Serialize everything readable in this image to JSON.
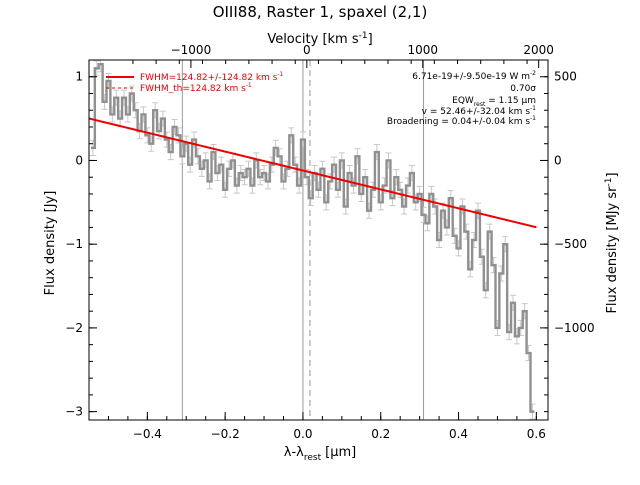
{
  "chart_data": {
    "type": "line",
    "title": "OIII88, Raster 1, spaxel (2,1)",
    "xlabel": "λ-λ",
    "xlabel_sub": "rest",
    "xlabel_unit": "[μm]",
    "top_xlabel": "Velocity [km s",
    "top_xlabel_sup": "-1",
    "top_xlabel_end": "]",
    "ylabel": "Flux density [Jy]",
    "right_ylabel": "Flux density [MJy sr",
    "right_ylabel_sup": "-1",
    "right_ylabel_end": "]",
    "xlim": [
      -0.55,
      0.63
    ],
    "ylim": [
      -3.1,
      1.2
    ],
    "x_ticks": [
      -0.4,
      -0.2,
      0.0,
      0.2,
      0.4,
      0.6
    ],
    "x_tick_labels": [
      "−0.4",
      "−0.2",
      "0.0",
      "0.2",
      "0.4",
      "0.6"
    ],
    "y_ticks": [
      -3,
      -2,
      -1,
      0,
      1
    ],
    "y_tick_labels": [
      "−3",
      "−2",
      "−1",
      "0",
      "1"
    ],
    "top_ticks": [
      -1000,
      0,
      1000,
      2000
    ],
    "top_tick_labels": [
      "−1000",
      "0",
      "1000",
      "2000"
    ],
    "right_ticks": [
      500,
      0,
      -500,
      -1000
    ],
    "right_tick_labels": [
      "500",
      "0",
      "−500",
      "−1000"
    ],
    "vlines": [
      -0.31,
      0.0,
      0.31
    ],
    "dashed_vline": 0.018,
    "legend": {
      "line1": "FWHM=124.82+/-124.82 km s",
      "line1_sup": "-1",
      "line2": "FWHM_th=124.82 km s",
      "line2_sup": "-1"
    },
    "annotations": {
      "flux": "6.71e-19+/-9.50e-19 W m",
      "flux_sup": "-2",
      "sigma": "0.70σ",
      "eqw_pre": "EQW",
      "eqw_sub": "rest",
      "eqw_val": " = 1.15 μm",
      "v": "v = 52.46+/-32.04 km s",
      "v_sup": "-1",
      "broadening": "Broadening = 0.04+/-0.04 km s",
      "broadening_sup": "-1"
    },
    "series": [
      {
        "kind": "spectrum",
        "color": "#909090",
        "x": [
          -0.54,
          -0.53,
          -0.52,
          -0.51,
          -0.5,
          -0.49,
          -0.48,
          -0.47,
          -0.46,
          -0.45,
          -0.44,
          -0.43,
          -0.42,
          -0.41,
          -0.4,
          -0.39,
          -0.38,
          -0.37,
          -0.36,
          -0.35,
          -0.34,
          -0.33,
          -0.32,
          -0.31,
          -0.3,
          -0.29,
          -0.28,
          -0.27,
          -0.26,
          -0.25,
          -0.24,
          -0.23,
          -0.22,
          -0.21,
          -0.2,
          -0.19,
          -0.18,
          -0.17,
          -0.16,
          -0.15,
          -0.14,
          -0.13,
          -0.12,
          -0.11,
          -0.1,
          -0.09,
          -0.08,
          -0.07,
          -0.06,
          -0.05,
          -0.04,
          -0.03,
          -0.02,
          -0.01,
          0.0,
          0.01,
          0.02,
          0.03,
          0.04,
          0.05,
          0.06,
          0.07,
          0.08,
          0.09,
          0.1,
          0.11,
          0.12,
          0.13,
          0.14,
          0.15,
          0.16,
          0.17,
          0.18,
          0.19,
          0.2,
          0.21,
          0.22,
          0.23,
          0.24,
          0.25,
          0.26,
          0.27,
          0.28,
          0.29,
          0.3,
          0.31,
          0.32,
          0.33,
          0.34,
          0.35,
          0.36,
          0.37,
          0.38,
          0.39,
          0.4,
          0.41,
          0.42,
          0.43,
          0.44,
          0.45,
          0.46,
          0.47,
          0.48,
          0.49,
          0.5,
          0.51,
          0.52,
          0.53,
          0.54,
          0.55,
          0.56,
          0.57,
          0.58,
          0.59
        ],
        "y": [
          0.15,
          1.1,
          1.15,
          0.7,
          0.95,
          0.55,
          0.75,
          0.5,
          0.75,
          0.55,
          0.8,
          0.6,
          0.35,
          0.55,
          0.3,
          0.2,
          0.6,
          0.35,
          0.5,
          0.25,
          0.1,
          0.4,
          0.3,
          0.05,
          0.2,
          -0.05,
          0.25,
          0.05,
          -0.1,
          0.0,
          -0.25,
          0.1,
          -0.15,
          -0.05,
          -0.35,
          -0.1,
          0.0,
          -0.3,
          -0.15,
          -0.2,
          -0.1,
          -0.3,
          0.0,
          -0.2,
          -0.15,
          -0.25,
          -0.05,
          0.15,
          0.05,
          -0.25,
          -0.1,
          0.3,
          -0.05,
          -0.3,
          0.25,
          -0.2,
          -0.45,
          -0.15,
          -0.35,
          -0.1,
          -0.5,
          -0.25,
          -0.05,
          -0.35,
          0.0,
          -0.55,
          -0.15,
          -0.3,
          0.05,
          -0.4,
          -0.2,
          -0.6,
          -0.35,
          0.1,
          -0.5,
          -0.3,
          0.0,
          -0.45,
          -0.2,
          -0.35,
          -0.55,
          -0.3,
          -0.15,
          -0.5,
          -0.4,
          -0.65,
          -0.75,
          -0.4,
          -0.55,
          -0.95,
          -0.6,
          -0.8,
          -0.45,
          -0.9,
          -1.05,
          -0.55,
          -0.85,
          -1.3,
          -0.95,
          -0.6,
          -1.15,
          -1.55,
          -0.85,
          -1.25,
          -2.0,
          -1.35,
          -1.0,
          -2.05,
          -1.7,
          -2.1,
          -2.0,
          -1.8,
          -2.3,
          -3.0
        ],
        "err": 0.09
      },
      {
        "kind": "fit",
        "color": "#ee0000",
        "poly": [
          -0.12,
          -1.13,
          0.0
        ]
      }
    ]
  }
}
